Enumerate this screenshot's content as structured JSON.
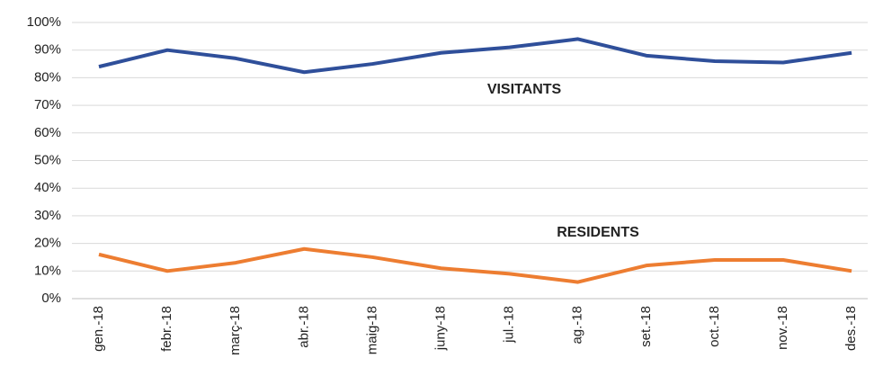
{
  "chart_data": {
    "type": "line",
    "categories": [
      "gen.-18",
      "febr.-18",
      "març-18",
      "abr.-18",
      "maig-18",
      "juny-18",
      "jul.-18",
      "ag.-18",
      "set.-18",
      "oct.-18",
      "nov.-18",
      "des.-18"
    ],
    "series": [
      {
        "name": "VISITANTS",
        "color": "#2f4f9a",
        "values": [
          84,
          90,
          87,
          82,
          85,
          89,
          91,
          94,
          88,
          86,
          85.5,
          89
        ]
      },
      {
        "name": "RESIDENTS",
        "color": "#ed7d31",
        "values": [
          16,
          10,
          13,
          18,
          15,
          11,
          9,
          6,
          12,
          14,
          14,
          10
        ]
      }
    ],
    "ylim": [
      0,
      100
    ],
    "yticks": [
      {
        "value": 0,
        "label": "0%"
      },
      {
        "value": 10,
        "label": "10%"
      },
      {
        "value": 20,
        "label": "20%"
      },
      {
        "value": 30,
        "label": "30%"
      },
      {
        "value": 40,
        "label": "40%"
      },
      {
        "value": 50,
        "label": "50%"
      },
      {
        "value": 60,
        "label": "60%"
      },
      {
        "value": 70,
        "label": "70%"
      },
      {
        "value": 80,
        "label": "80%"
      },
      {
        "value": 90,
        "label": "90%"
      },
      {
        "value": 100,
        "label": "100%"
      }
    ],
    "grid": true
  }
}
